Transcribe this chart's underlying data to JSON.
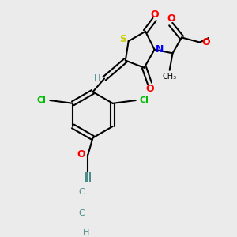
{
  "background_color": "#ebebeb",
  "atom_colors": {
    "S": "#cccc00",
    "N": "#0000ff",
    "O": "#ff0000",
    "Cl": "#00bb00",
    "C": "#000000",
    "H": "#4a8a8a"
  },
  "bond_color": "#000000",
  "figsize": [
    3.0,
    3.0
  ],
  "dpi": 100
}
